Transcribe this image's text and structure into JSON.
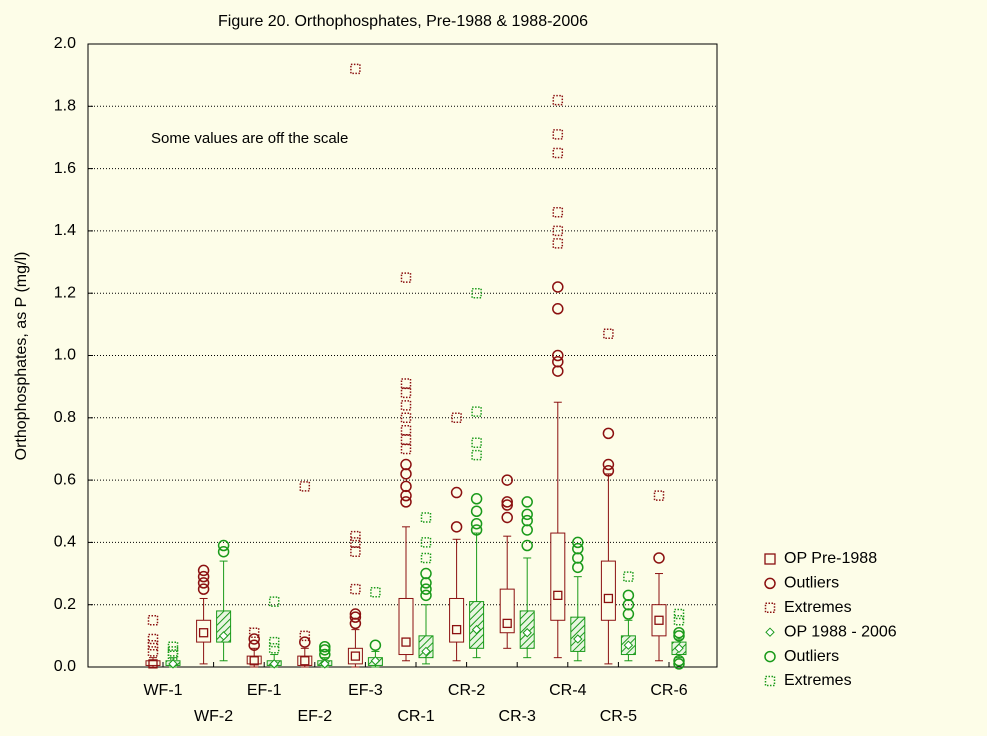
{
  "chart_data": {
    "type": "box",
    "title": "Figure 20. Orthophosphates, Pre-1988 & 1988-2006",
    "ylabel": "Orthophosphates, as P (mg/l)",
    "annotation": "Some values are off the scale",
    "categories": [
      "WF-1",
      "WF-2",
      "EF-1",
      "EF-2",
      "EF-3",
      "CR-1",
      "CR-2",
      "CR-3",
      "CR-4",
      "CR-5",
      "CR-6"
    ],
    "ylim": [
      0,
      2
    ],
    "yticks": [
      {
        "value": 0,
        "label": "0.0"
      },
      {
        "value": 0.2,
        "label": "0.2"
      },
      {
        "value": 0.4,
        "label": "0.4"
      },
      {
        "value": 0.6,
        "label": "0.6"
      },
      {
        "value": 0.8,
        "label": "0.8"
      },
      {
        "value": 1,
        "label": "1.0"
      },
      {
        "value": 1.2,
        "label": "1.2"
      },
      {
        "value": 1.4,
        "label": "1.4"
      },
      {
        "value": 1.6,
        "label": "1.6"
      },
      {
        "value": 1.8,
        "label": "1.8"
      },
      {
        "value": 2,
        "label": "2.0"
      }
    ],
    "grid": true,
    "legend": "right",
    "series": [
      {
        "name": "OP Pre-1988",
        "outliers_name": "Outliers",
        "extremes_name": "Extremes",
        "color": "#8b1010",
        "hatched": false,
        "median": [
          0.01,
          0.11,
          0.02,
          0.02,
          0.035,
          0.08,
          0.12,
          0.14,
          0.23,
          0.22,
          0.15
        ],
        "q1": [
          0.005,
          0.08,
          0.01,
          0.005,
          0.01,
          0.04,
          0.08,
          0.11,
          0.15,
          0.15,
          0.1
        ],
        "q3": [
          0.02,
          0.15,
          0.035,
          0.035,
          0.06,
          0.22,
          0.22,
          0.25,
          0.43,
          0.34,
          0.2
        ],
        "whisker_low": [
          0,
          0.01,
          0,
          0,
          0,
          0.02,
          0.02,
          0.06,
          0.03,
          0.01,
          0.02
        ],
        "whisker_high": [
          0.03,
          0.22,
          0.06,
          0.06,
          0.12,
          0.45,
          0.41,
          0.42,
          0.85,
          0.62,
          0.3
        ],
        "outliers": [
          [],
          [
            0.25,
            0.27,
            0.29,
            0.31
          ],
          [
            0.07,
            0.09
          ],
          [
            0.08
          ],
          [
            0.14,
            0.16,
            0.17
          ],
          [
            0.53,
            0.55,
            0.58,
            0.62,
            0.65
          ],
          [
            0.45,
            0.56
          ],
          [
            0.48,
            0.52,
            0.53,
            0.6
          ],
          [
            0.95,
            0.98,
            1.0,
            1.15,
            1.22
          ],
          [
            0.63,
            0.65,
            0.75
          ],
          [
            0.35
          ]
        ],
        "extremes": [
          [
            0.05,
            0.07,
            0.09,
            0.15
          ],
          [],
          [
            0.11
          ],
          [
            0.1,
            0.58
          ],
          [
            0.25,
            0.37,
            0.4,
            0.42,
            1.92
          ],
          [
            0.7,
            0.73,
            0.76,
            0.8,
            0.84,
            0.88,
            0.91,
            1.25
          ],
          [
            0.8
          ],
          [],
          [
            1.36,
            1.4,
            1.46,
            1.65,
            1.71,
            1.82
          ],
          [
            1.07
          ],
          [
            0.55
          ]
        ]
      },
      {
        "name": "OP 1988 - 2006",
        "outliers_name": "Outliers",
        "extremes_name": "Extremes",
        "color": "#1a9a1a",
        "hatched": true,
        "median": [
          0.01,
          0.1,
          0.01,
          0.01,
          0.02,
          0.05,
          0.12,
          0.11,
          0.09,
          0.07,
          0.06
        ],
        "q1": [
          0.005,
          0.08,
          0.005,
          0.005,
          0.005,
          0.03,
          0.06,
          0.06,
          0.05,
          0.04,
          0.04
        ],
        "q3": [
          0.02,
          0.18,
          0.02,
          0.02,
          0.03,
          0.1,
          0.21,
          0.18,
          0.16,
          0.1,
          0.08
        ],
        "whisker_low": [
          0,
          0.02,
          0,
          0,
          0,
          0.01,
          0.03,
          0.03,
          0.02,
          0.02,
          0.03
        ],
        "whisker_high": [
          0.03,
          0.34,
          0.04,
          0.03,
          0.05,
          0.2,
          0.43,
          0.35,
          0.29,
          0.15,
          0.09
        ],
        "outliers": [
          [],
          [
            0.37,
            0.39
          ],
          [],
          [
            0.04,
            0.055,
            0.065
          ],
          [
            0.07
          ],
          [
            0.23,
            0.25,
            0.27,
            0.3
          ],
          [
            0.44,
            0.46,
            0.5,
            0.54
          ],
          [
            0.39,
            0.44,
            0.47,
            0.49,
            0.53
          ],
          [
            0.32,
            0.35,
            0.38,
            0.4
          ],
          [
            0.17,
            0.2,
            0.23
          ],
          [
            0.01,
            0.02,
            0.1,
            0.11
          ]
        ],
        "extremes": [
          [
            0.04,
            0.05,
            0.065
          ],
          [],
          [
            0.06,
            0.08,
            0.21
          ],
          [],
          [
            0.24
          ],
          [
            0.35,
            0.4,
            0.48
          ],
          [
            0.68,
            0.72,
            0.82,
            1.2
          ],
          [],
          [],
          [
            0.29
          ],
          [
            0.15,
            0.17
          ]
        ]
      }
    ]
  }
}
